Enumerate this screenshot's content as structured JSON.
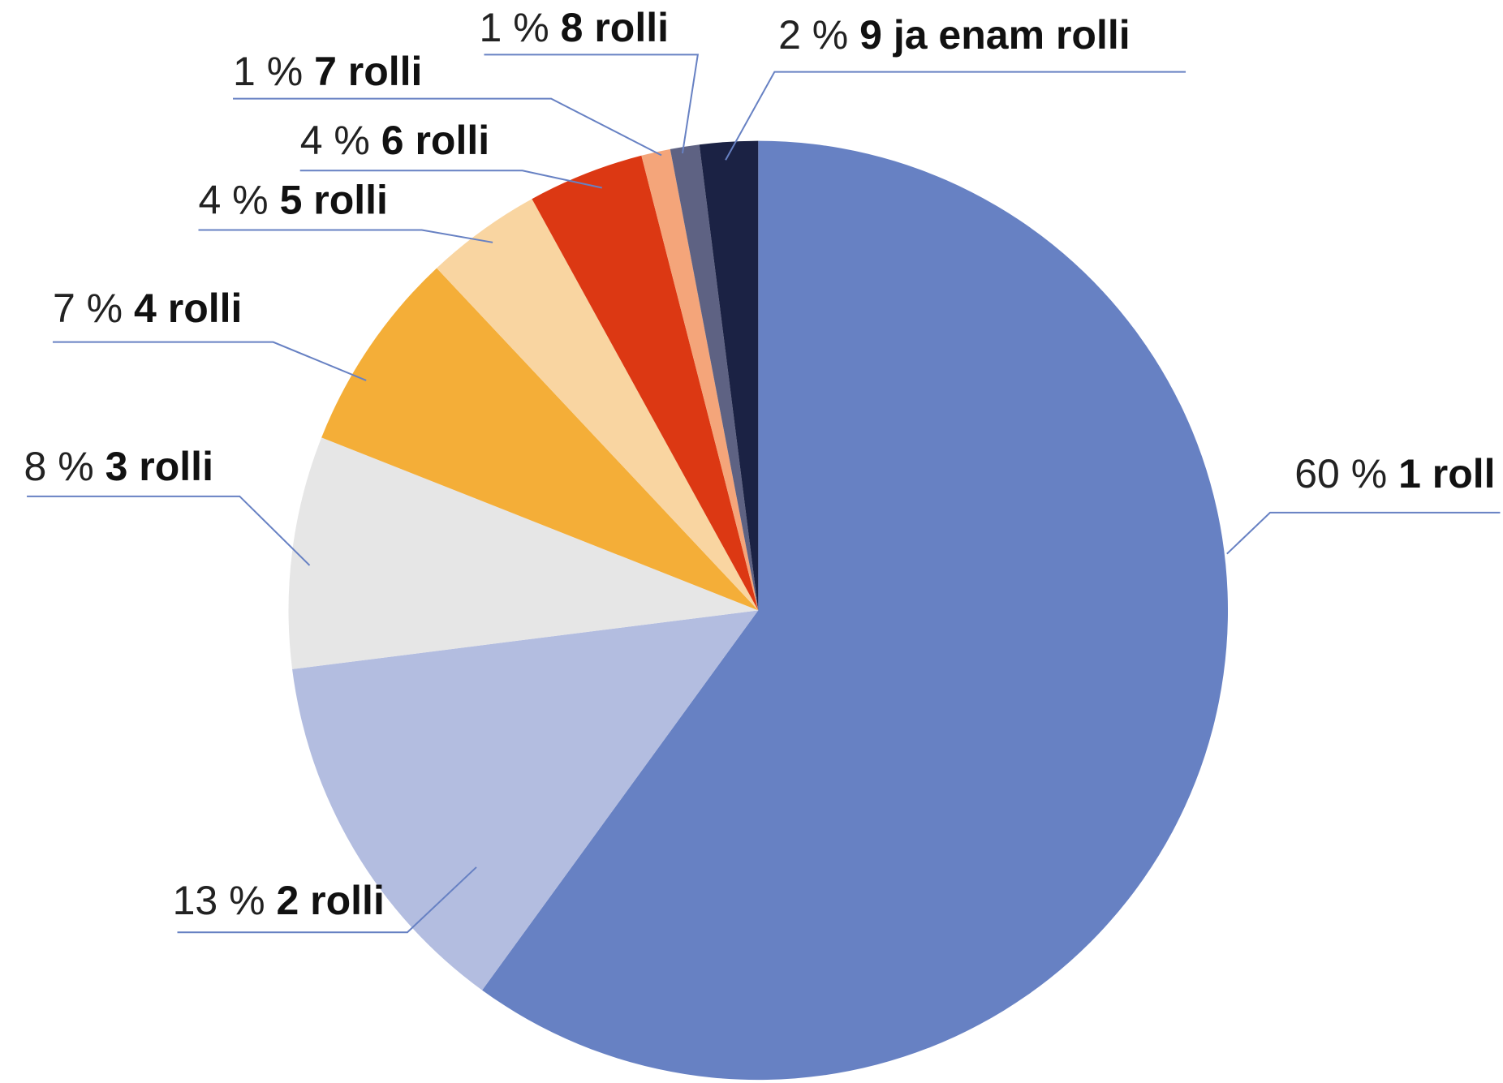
{
  "chart_data": {
    "type": "pie",
    "categories": [
      "1 roll",
      "2 rolli",
      "3 rolli",
      "4 rolli",
      "5 rolli",
      "6 rolli",
      "7 rolli",
      "8 rolli",
      "9 ja enam rolli"
    ],
    "values": [
      60,
      13,
      8,
      7,
      4,
      4,
      1,
      1,
      2
    ],
    "value_labels": [
      "60 %",
      "13 %",
      "8 %",
      "7 %",
      "4 %",
      "4 %",
      "1 %",
      "1 %",
      "2 %"
    ],
    "colors": [
      "#6781c3",
      "#b3bde0",
      "#e6e6e6",
      "#f4ae38",
      "#f9d5a1",
      "#dc3813",
      "#f4a57a",
      "#5e6283",
      "#1b2244"
    ]
  }
}
